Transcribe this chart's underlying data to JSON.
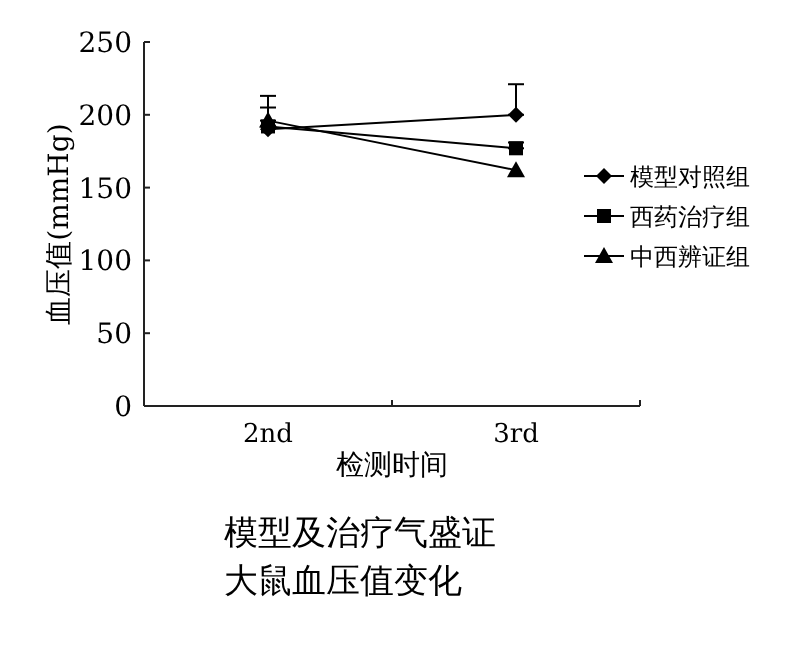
{
  "chart_data": {
    "type": "line",
    "xlabel": "检测时间",
    "ylabel": "血压值(mmHg)",
    "categories": [
      "2nd",
      "3rd"
    ],
    "ylim": [
      0,
      250
    ],
    "yticks": [
      0,
      50,
      100,
      150,
      200,
      250
    ],
    "grid": false,
    "legend": "right",
    "line_style": "solid",
    "series": [
      {
        "name": "模型对照组",
        "color": "#000000",
        "marker": "diamond",
        "values": [
          190,
          200
        ],
        "errors": [
          null,
          [
            200,
            221
          ]
        ]
      },
      {
        "name": "西药治疗组",
        "color": "#000000",
        "marker": "square",
        "values": [
          192,
          177
        ],
        "errors": [
          [
            192,
            205
          ],
          [
            177,
            181
          ]
        ]
      },
      {
        "name": "中西辨证组",
        "color": "#000000",
        "marker": "triangle",
        "values": [
          196,
          162
        ],
        "errors": [
          [
            196,
            213
          ],
          null
        ]
      }
    ],
    "annotations": [
      "模型及治疗气盛证大鼠血压值变化"
    ]
  }
}
